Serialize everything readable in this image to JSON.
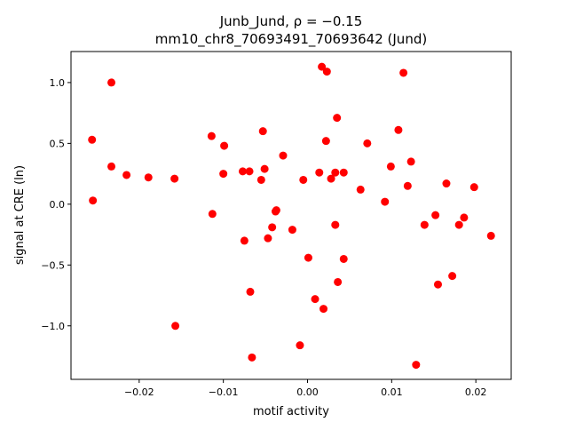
{
  "chart_data": {
    "type": "scatter",
    "title_line1": "Junb_Jund, ρ = −0.15",
    "title_line2": "mm10_chr8_70693491_70693642 (Jund)",
    "xlabel": "motif activity",
    "ylabel": "signal at CRE (ln)",
    "xlim": [
      -0.0281,
      0.0242
    ],
    "ylim": [
      -1.44,
      1.255
    ],
    "xticks": [
      -0.02,
      -0.01,
      0.0,
      0.01,
      0.02
    ],
    "xtick_labels": [
      "−0.02",
      "−0.01",
      "0.00",
      "0.01",
      "0.02"
    ],
    "yticks": [
      -1.0,
      -0.5,
      0.0,
      0.5,
      1.0
    ],
    "ytick_labels": [
      "−1.0",
      "−0.5",
      "0.0",
      "0.5",
      "1.0"
    ],
    "grid": false,
    "marker_color": "#ff0000",
    "points": [
      {
        "x": -0.0256,
        "y": 0.53
      },
      {
        "x": -0.0255,
        "y": 0.03
      },
      {
        "x": -0.0233,
        "y": 1.0
      },
      {
        "x": -0.0233,
        "y": 0.31
      },
      {
        "x": -0.0215,
        "y": 0.24
      },
      {
        "x": -0.0189,
        "y": 0.22
      },
      {
        "x": -0.0158,
        "y": 0.21
      },
      {
        "x": -0.0157,
        "y": -1.0
      },
      {
        "x": -0.0114,
        "y": 0.56
      },
      {
        "x": -0.0113,
        "y": -0.08
      },
      {
        "x": -0.0099,
        "y": 0.48
      },
      {
        "x": -0.01,
        "y": 0.25
      },
      {
        "x": -0.0077,
        "y": 0.27
      },
      {
        "x": -0.0075,
        "y": -0.3
      },
      {
        "x": -0.0069,
        "y": 0.27
      },
      {
        "x": -0.0068,
        "y": -0.72
      },
      {
        "x": -0.0066,
        "y": -1.26
      },
      {
        "x": -0.0055,
        "y": 0.2
      },
      {
        "x": -0.0053,
        "y": 0.6
      },
      {
        "x": -0.0051,
        "y": 0.29
      },
      {
        "x": -0.0047,
        "y": -0.28
      },
      {
        "x": -0.0042,
        "y": -0.19
      },
      {
        "x": -0.0038,
        "y": -0.06
      },
      {
        "x": -0.0037,
        "y": -0.05
      },
      {
        "x": -0.0029,
        "y": 0.4
      },
      {
        "x": -0.0018,
        "y": -0.21
      },
      {
        "x": -0.0009,
        "y": -1.16
      },
      {
        "x": -0.0005,
        "y": 0.2
      },
      {
        "x": 0.0001,
        "y": -0.44
      },
      {
        "x": 0.0009,
        "y": -0.78
      },
      {
        "x": 0.0014,
        "y": 0.26
      },
      {
        "x": 0.0017,
        "y": 1.13
      },
      {
        "x": 0.0019,
        "y": -0.86
      },
      {
        "x": 0.0022,
        "y": 0.52
      },
      {
        "x": 0.0023,
        "y": 1.09
      },
      {
        "x": 0.0028,
        "y": 0.21
      },
      {
        "x": 0.0033,
        "y": 0.26
      },
      {
        "x": 0.0033,
        "y": -0.17
      },
      {
        "x": 0.0035,
        "y": 0.71
      },
      {
        "x": 0.0036,
        "y": -0.64
      },
      {
        "x": 0.0043,
        "y": 0.26
      },
      {
        "x": 0.0043,
        "y": -0.45
      },
      {
        "x": 0.0063,
        "y": 0.12
      },
      {
        "x": 0.0071,
        "y": 0.5
      },
      {
        "x": 0.0092,
        "y": 0.02
      },
      {
        "x": 0.0099,
        "y": 0.31
      },
      {
        "x": 0.0108,
        "y": 0.61
      },
      {
        "x": 0.0114,
        "y": 1.08
      },
      {
        "x": 0.0119,
        "y": 0.15
      },
      {
        "x": 0.0123,
        "y": 0.35
      },
      {
        "x": 0.0129,
        "y": -1.32
      },
      {
        "x": 0.0139,
        "y": -0.17
      },
      {
        "x": 0.0152,
        "y": -0.09
      },
      {
        "x": 0.0155,
        "y": -0.66
      },
      {
        "x": 0.0165,
        "y": 0.17
      },
      {
        "x": 0.0172,
        "y": -0.59
      },
      {
        "x": 0.018,
        "y": -0.17
      },
      {
        "x": 0.0186,
        "y": -0.11
      },
      {
        "x": 0.0198,
        "y": 0.14
      },
      {
        "x": 0.0218,
        "y": -0.26
      }
    ]
  }
}
